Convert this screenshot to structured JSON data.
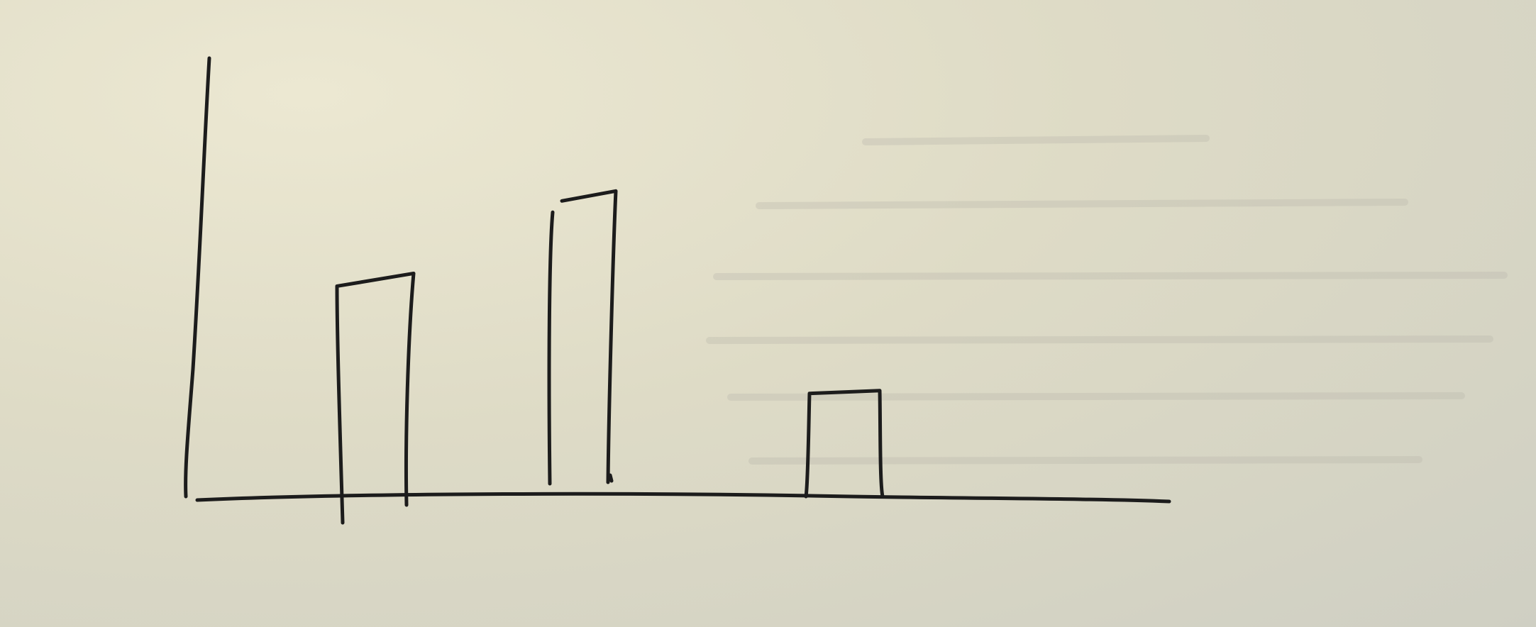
{
  "chart_data": {
    "type": "bar",
    "categories": [
      "",
      "",
      ""
    ],
    "values": [
      5.2,
      7.3,
      2.6
    ],
    "title": "",
    "xlabel": "",
    "ylabel": "",
    "ylim": [
      0,
      11
    ],
    "grid": false,
    "legend": "none",
    "style": "hand-drawn",
    "ink_color": "#1c1c1c",
    "paper_color": "#dedbc6"
  }
}
